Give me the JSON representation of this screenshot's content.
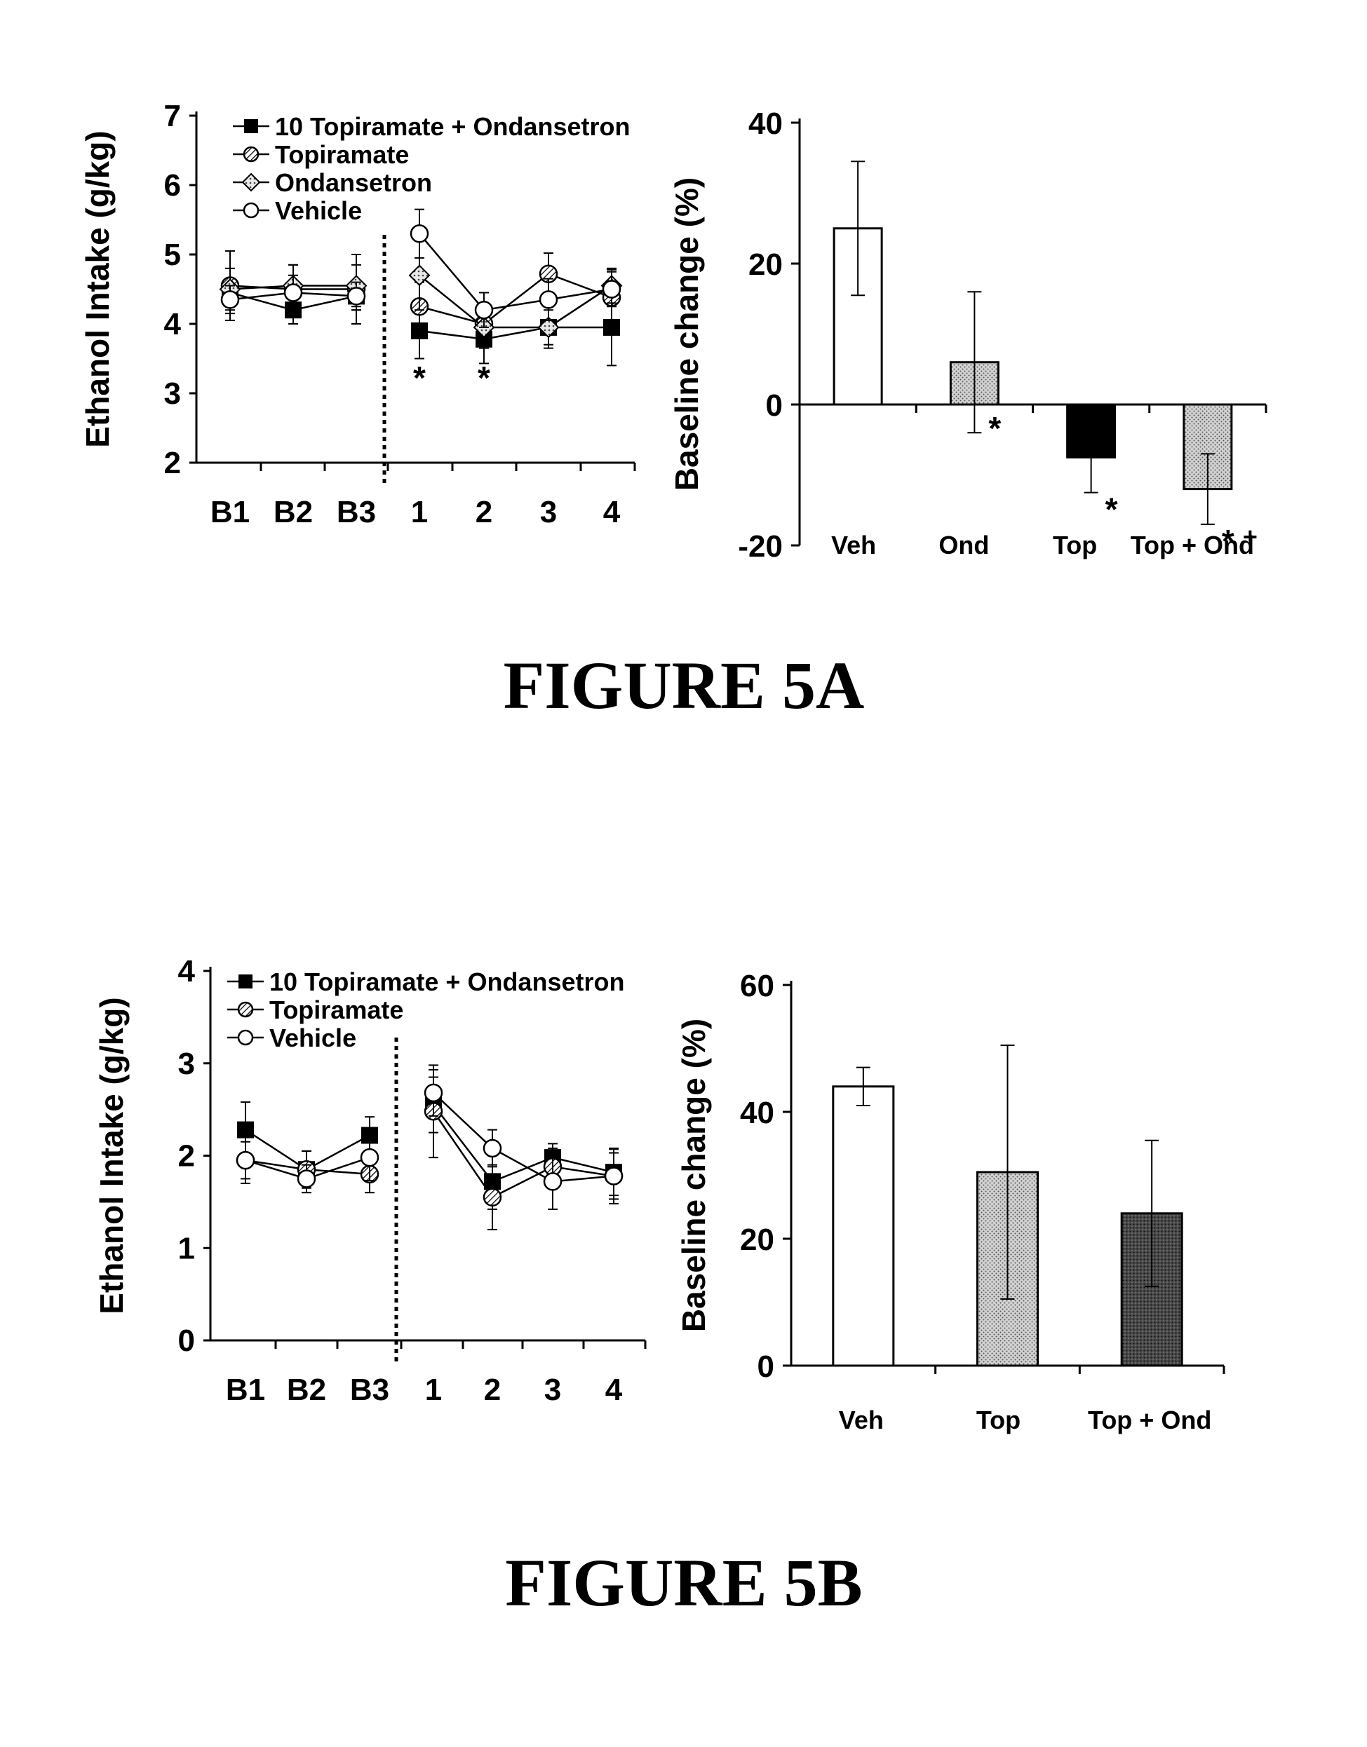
{
  "figures": [
    {
      "caption": "FIGURE 5A"
    },
    {
      "caption": "FIGURE 5B"
    }
  ],
  "chart_data": [
    {
      "id": "5A-line",
      "type": "line",
      "ylabel": "Ethanol Intake (g/kg)",
      "ylim": [
        2,
        7
      ],
      "yticks": [
        "2",
        "3",
        "4",
        "5",
        "6",
        "7"
      ],
      "categories": [
        "B1",
        "B2",
        "B3",
        "1",
        "2",
        "3",
        "4"
      ],
      "divider_after": "B3",
      "legend_position": "top-left",
      "series": [
        {
          "name": "10 Topiramate + Ondansetron",
          "marker": "filled-square",
          "values": [
            4.45,
            4.2,
            4.4,
            3.9,
            3.78,
            3.95,
            3.95
          ],
          "err": [
            0.15,
            0.2,
            0.2,
            0.4,
            0.35,
            0.3,
            0.55
          ]
        },
        {
          "name": "Topiramate",
          "marker": "hatched-circle",
          "values": [
            4.55,
            4.5,
            4.5,
            4.25,
            4.0,
            4.72,
            4.38
          ],
          "err": [
            0.5,
            0.35,
            0.5,
            0.35,
            0.3,
            0.3,
            0.4
          ]
        },
        {
          "name": "Ondansetron",
          "marker": "diamond",
          "values": [
            4.5,
            4.55,
            4.55,
            4.7,
            3.95,
            3.95,
            4.55
          ],
          "err": [
            0.3,
            0.3,
            0.3,
            0.5,
            0.3,
            0.25,
            0.25
          ]
        },
        {
          "name": "Vehicle",
          "marker": "open-circle",
          "values": [
            4.35,
            4.45,
            4.4,
            5.3,
            4.2,
            4.35,
            4.5
          ],
          "err": [
            0.2,
            0.25,
            0.2,
            0.35,
            0.25,
            0.3,
            0.25
          ]
        }
      ],
      "annotations": [
        {
          "category": "1",
          "text": "*"
        },
        {
          "category": "2",
          "text": "*"
        }
      ]
    },
    {
      "id": "5A-bar",
      "type": "bar",
      "ylabel": "Baseline change (%)",
      "ylim": [
        -20,
        40
      ],
      "yticks": [
        "-20",
        "0",
        "20",
        "40"
      ],
      "categories": [
        "Veh",
        "Ond",
        "Top",
        "Top + Ond"
      ],
      "values": [
        25,
        6,
        -7.5,
        -12
      ],
      "err": [
        9.5,
        10,
        5,
        5
      ],
      "fills": [
        "open",
        "stipple",
        "solid",
        "stipple"
      ],
      "annotations": [
        {
          "category": "Ond",
          "text": "*"
        },
        {
          "category": "Top",
          "text": "*"
        },
        {
          "category": "Top + Ond",
          "text": "*",
          "superscript": "+"
        }
      ]
    },
    {
      "id": "5B-line",
      "type": "line",
      "ylabel": "Ethanol Intake (g/kg)",
      "ylim": [
        0,
        4
      ],
      "yticks": [
        "0",
        "1",
        "2",
        "3",
        "4"
      ],
      "categories": [
        "B1",
        "B2",
        "B3",
        "1",
        "2",
        "3",
        "4"
      ],
      "divider_after": "B3",
      "legend_position": "top-left",
      "series": [
        {
          "name": "10 Topiramate + Ondansetron",
          "marker": "filled-square",
          "values": [
            2.28,
            1.85,
            2.22,
            2.55,
            1.72,
            1.98,
            1.82
          ],
          "err": [
            0.3,
            0.2,
            0.2,
            0.3,
            0.3,
            0.15,
            0.25
          ]
        },
        {
          "name": "Topiramate",
          "marker": "hatched-circle",
          "values": [
            1.95,
            1.85,
            1.8,
            2.48,
            1.55,
            1.88,
            1.78
          ],
          "err": [
            0.25,
            0.2,
            0.2,
            0.5,
            0.35,
            0.2,
            0.3
          ]
        },
        {
          "name": "Vehicle",
          "marker": "open-circle",
          "values": [
            1.95,
            1.75,
            1.98,
            2.68,
            2.08,
            1.72,
            1.78
          ],
          "err": [
            0.2,
            0.15,
            0.25,
            0.25,
            0.2,
            0.3,
            0.25
          ]
        }
      ]
    },
    {
      "id": "5B-bar",
      "type": "bar",
      "ylabel": "Baseline change (%)",
      "ylim": [
        0,
        60
      ],
      "yticks": [
        "0",
        "20",
        "40",
        "60"
      ],
      "categories": [
        "Veh",
        "Top",
        "Top + Ond"
      ],
      "values": [
        44,
        30.5,
        24
      ],
      "err": [
        3,
        20,
        11.5
      ],
      "fills": [
        "open",
        "stipple",
        "dark-stipple"
      ]
    }
  ]
}
